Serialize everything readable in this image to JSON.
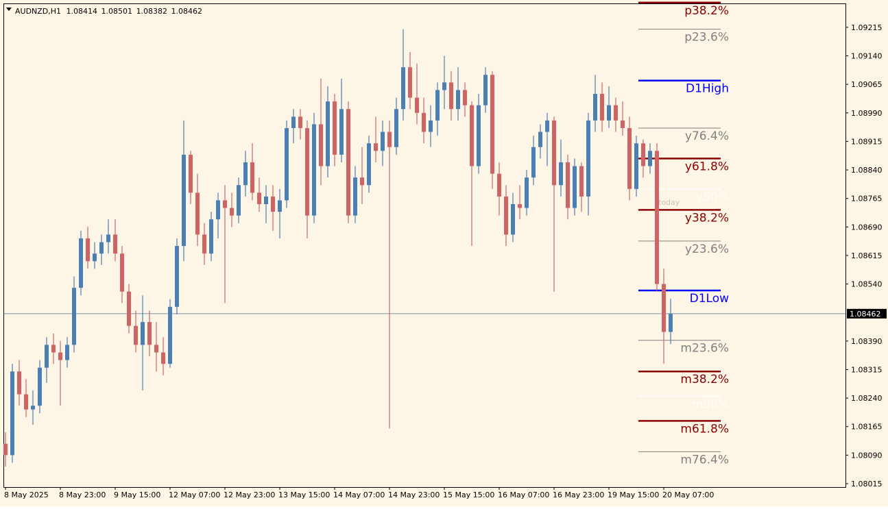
{
  "chart_data": {
    "type": "candlestick",
    "symbol": "AUDNZD,H1",
    "categories": [
      "8 May 2025",
      null,
      null,
      null,
      null,
      null,
      null,
      null,
      "8 May 23:00",
      null,
      null,
      null,
      null,
      null,
      null,
      null,
      "9 May 15:00",
      null,
      null,
      null,
      null,
      null,
      null,
      null,
      "12 May 07:00",
      null,
      null,
      null,
      null,
      null,
      null,
      null,
      "12 May 23:00",
      null,
      null,
      null,
      null,
      null,
      null,
      null,
      "13 May 15:00",
      null,
      null,
      null,
      null,
      null,
      null,
      null,
      "14 May 07:00",
      null,
      null,
      null,
      null,
      null,
      null,
      null,
      "14 May 23:00",
      null,
      null,
      null,
      null,
      null,
      null,
      null,
      "15 May 15:00",
      null,
      null,
      null,
      null,
      null,
      null,
      null,
      "16 May 07:00",
      null,
      null,
      null,
      null,
      null,
      null,
      null,
      "16 May 23:00",
      null,
      null,
      null,
      null,
      null,
      null,
      null,
      "19 May 15:00",
      null,
      null,
      null,
      null,
      null,
      null,
      null,
      "20 May 07:00",
      null
    ],
    "open": [
      1.0812,
      1.0809,
      1.0831,
      1.0825,
      1.0821,
      1.0822,
      1.0832,
      1.0838,
      1.0836,
      1.0834,
      1.0838,
      1.0853,
      1.0866,
      1.086,
      1.0862,
      1.0865,
      1.0867,
      1.0862,
      1.0852,
      1.0843,
      1.0838,
      1.0844,
      1.0838,
      1.0836,
      1.0833,
      1.0848,
      1.0864,
      1.0888,
      1.0878,
      1.0867,
      1.0862,
      1.0871,
      1.0876,
      1.0874,
      1.0872,
      1.088,
      1.0886,
      1.0878,
      1.0875,
      1.0877,
      1.0873,
      1.0876,
      1.0895,
      1.0898,
      1.0895,
      1.0872,
      1.0896,
      1.0885,
      1.0902,
      1.0888,
      1.09,
      1.0872,
      1.0882,
      1.088,
      1.0891,
      1.0889,
      1.0894,
      1.089,
      1.09,
      1.0911,
      1.0903,
      1.0899,
      1.0894,
      1.0897,
      1.0905,
      1.0907,
      1.09,
      1.0905,
      1.0901,
      1.0885,
      1.0901,
      1.0909,
      1.0883,
      1.0877,
      1.0867,
      1.0875,
      1.0874,
      1.0882,
      1.089,
      1.0894,
      1.0897,
      1.088,
      1.0886,
      1.0874,
      1.0885,
      1.0877,
      1.0897,
      1.0904,
      1.0897,
      1.0901,
      1.0897,
      1.0895,
      1.0879,
      1.0891,
      1.0885,
      1.0889,
      1.0854,
      1.08414
    ],
    "high": [
      1.0815,
      1.0833,
      1.0834,
      1.0829,
      1.0826,
      1.0834,
      1.084,
      1.0841,
      1.0839,
      1.084,
      1.0856,
      1.0868,
      1.0869,
      1.0865,
      1.0867,
      1.0871,
      1.0871,
      1.0864,
      1.0854,
      1.0847,
      1.0851,
      1.0847,
      1.0844,
      1.084,
      1.085,
      1.0866,
      1.0897,
      1.0889,
      1.0883,
      1.087,
      1.0873,
      1.0878,
      1.088,
      1.0878,
      1.0882,
      1.0889,
      1.0891,
      1.0882,
      1.088,
      1.088,
      1.0879,
      1.0897,
      1.09,
      1.09,
      1.0897,
      1.0899,
      1.0908,
      1.0906,
      1.0904,
      1.0908,
      1.0902,
      1.0885,
      1.089,
      1.0893,
      1.0898,
      1.0897,
      1.0897,
      1.0903,
      1.0921,
      1.0915,
      1.0912,
      1.0903,
      1.0901,
      1.0907,
      1.0914,
      1.091,
      1.0911,
      1.0907,
      1.0902,
      1.0904,
      1.0911,
      1.091,
      1.0886,
      1.088,
      1.0878,
      1.088,
      1.0884,
      1.0893,
      1.0896,
      1.0899,
      1.0898,
      1.0892,
      1.0888,
      1.0887,
      1.0886,
      1.0899,
      1.0909,
      1.0907,
      1.0906,
      1.0903,
      1.0902,
      1.0898,
      1.0893,
      1.0892,
      1.0891,
      1.0891,
      1.0858,
      1.08501
    ],
    "low": [
      1.0806,
      1.0807,
      1.0822,
      1.0819,
      1.0817,
      1.082,
      1.0828,
      1.0833,
      1.0822,
      1.0832,
      1.0836,
      1.0851,
      1.0858,
      1.0858,
      1.0859,
      1.0862,
      1.086,
      1.0849,
      1.0841,
      1.0836,
      1.0826,
      1.0835,
      1.0831,
      1.083,
      1.0832,
      1.0846,
      1.086,
      1.0875,
      1.0864,
      1.0859,
      1.086,
      1.0866,
      1.0849,
      1.0869,
      1.087,
      1.0877,
      1.0876,
      1.0873,
      1.087,
      1.0868,
      1.0866,
      1.0874,
      1.0891,
      1.0892,
      1.0866,
      1.087,
      1.088,
      1.0882,
      1.0885,
      1.0886,
      1.087,
      1.087,
      1.0875,
      1.0878,
      1.0886,
      1.0885,
      1.0816,
      1.0888,
      1.0897,
      1.09,
      1.0896,
      1.0891,
      1.089,
      1.0893,
      1.09,
      1.0897,
      1.0897,
      1.0898,
      1.0864,
      1.0883,
      1.0899,
      1.0879,
      1.0872,
      1.0864,
      1.0865,
      1.0871,
      1.0872,
      1.088,
      1.0887,
      1.0885,
      1.0852,
      1.0877,
      1.0871,
      1.0872,
      1.0873,
      1.0872,
      1.0894,
      1.0894,
      1.0895,
      1.0894,
      1.0893,
      1.0876,
      1.0877,
      1.0882,
      1.0883,
      1.0852,
      1.0833,
      1.08382
    ],
    "close": [
      1.0809,
      1.0831,
      1.0825,
      1.0821,
      1.0822,
      1.0832,
      1.0838,
      1.0836,
      1.0834,
      1.0838,
      1.0853,
      1.0866,
      1.086,
      1.0862,
      1.0865,
      1.0867,
      1.0862,
      1.0852,
      1.0843,
      1.0838,
      1.0844,
      1.0838,
      1.0836,
      1.0833,
      1.0848,
      1.0864,
      1.0888,
      1.0878,
      1.0867,
      1.0862,
      1.0871,
      1.0876,
      1.0874,
      1.0872,
      1.088,
      1.0886,
      1.0878,
      1.0875,
      1.0877,
      1.0873,
      1.0876,
      1.0895,
      1.0898,
      1.0895,
      1.0872,
      1.0896,
      1.0885,
      1.0902,
      1.0888,
      1.09,
      1.0872,
      1.0882,
      1.088,
      1.0891,
      1.0889,
      1.0894,
      1.089,
      1.09,
      1.0911,
      1.0903,
      1.0899,
      1.0894,
      1.0897,
      1.0905,
      1.0907,
      1.09,
      1.0905,
      1.0901,
      1.0885,
      1.0901,
      1.0909,
      1.0883,
      1.0877,
      1.0867,
      1.0875,
      1.0874,
      1.0882,
      1.089,
      1.0894,
      1.0897,
      1.088,
      1.0886,
      1.0874,
      1.0885,
      1.0877,
      1.0897,
      1.0904,
      1.0897,
      1.0901,
      1.0897,
      1.0895,
      1.0879,
      1.0891,
      1.0885,
      1.0889,
      1.0854,
      1.08414,
      1.08462
    ],
    "bull_color": "#4a7fb5",
    "bear_color": "#d06464",
    "price_line_color": "#7891ad",
    "ylim": [
      1.08006,
      1.09276
    ],
    "yticks": [
      1.08015,
      {
        "value": 1.0809,
        "label": "1.08090"
      },
      1.08165,
      {
        "value": 1.0824,
        "label": "1.08240"
      },
      1.08315,
      {
        "value": 1.0839,
        "label": "1.08390"
      },
      {
        "value": 1.0854,
        "label": "1.08540"
      },
      1.08615,
      {
        "value": 1.0869,
        "label": "1.08690"
      },
      1.08765,
      {
        "value": 1.0884,
        "label": "1.08840"
      },
      1.08915,
      {
        "value": 1.0899,
        "label": "1.08990"
      },
      1.09065,
      {
        "value": 1.0914,
        "label": "1.09140"
      },
      1.09215
    ],
    "levels": [
      {
        "name": "p38.2%",
        "value": 1.0928,
        "color": "#8b0000"
      },
      {
        "name": "p23.6%",
        "value": 1.0921,
        "color": "#808080"
      },
      {
        "name": "D1High",
        "value": 1.09075,
        "color": "#0000ff"
      },
      {
        "name": "y76.4%",
        "value": 1.0895,
        "color": "#808080"
      },
      {
        "name": "y61.8%",
        "value": 1.0887,
        "color": "#8b0000"
      },
      {
        "name": "y50%",
        "value": 1.0879,
        "color": "#ffffff"
      },
      {
        "name": "y38.2%",
        "value": 1.08735,
        "color": "#8b0000"
      },
      {
        "name": "y23.6%",
        "value": 1.08653,
        "color": "#808080"
      },
      {
        "name": "D1Low",
        "value": 1.08523,
        "color": "#0000ff"
      },
      {
        "name": "m23.6%",
        "value": 1.08392,
        "color": "#808080"
      },
      {
        "name": "m38.2%",
        "value": 1.0831,
        "color": "#8b0000"
      },
      {
        "name": "m50%",
        "value": 1.08245,
        "color": "#ffffff"
      },
      {
        "name": "m61.8%",
        "value": 1.0818,
        "color": "#8b0000"
      },
      {
        "name": "m76.4%",
        "value": 1.08099,
        "color": "#808080"
      }
    ],
    "annotations": [
      "today"
    ]
  }
}
